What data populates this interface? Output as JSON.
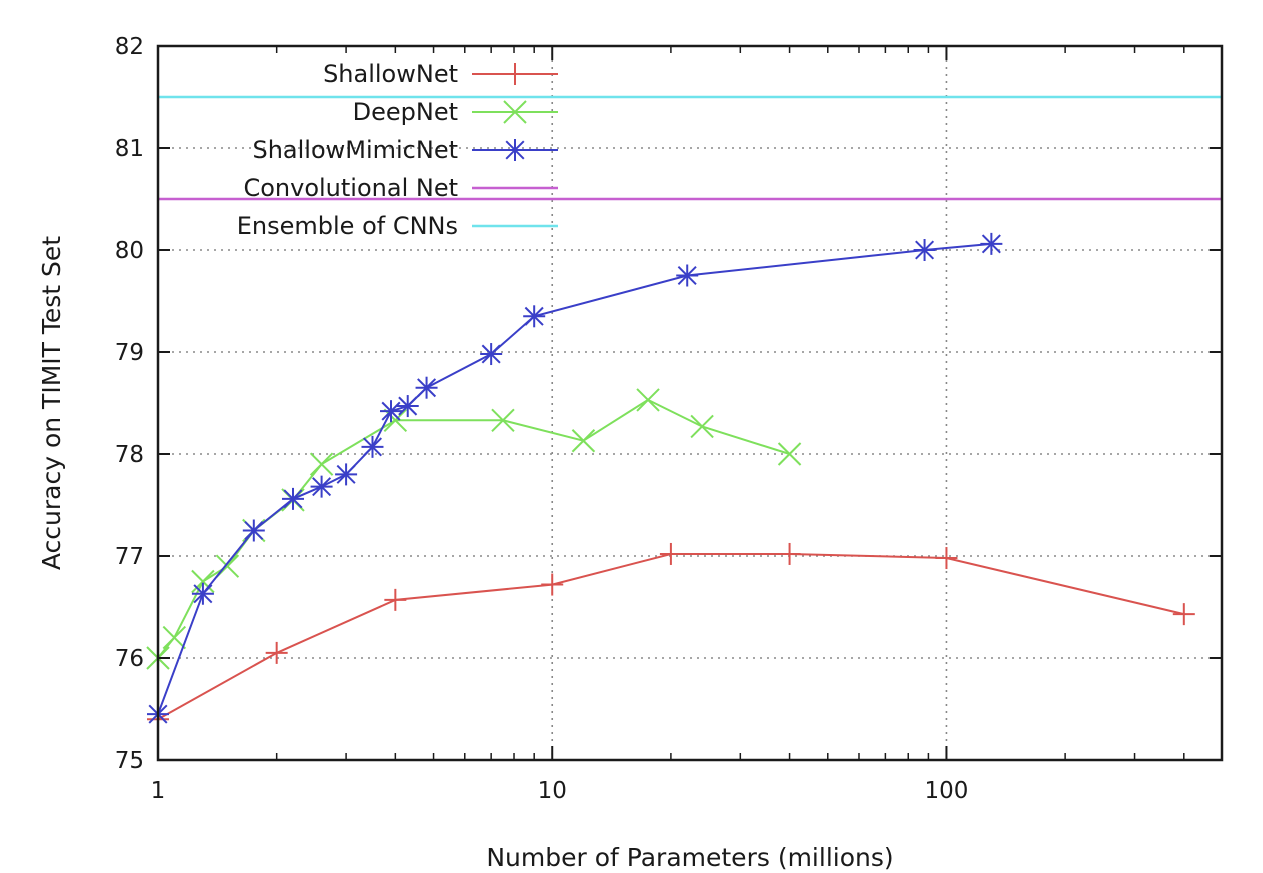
{
  "chart_data": {
    "type": "line",
    "title": "",
    "xlabel": "Number of Parameters (millions)",
    "ylabel": "Accuracy on TIMIT Test Set",
    "xscale": "log",
    "xlim": [
      1,
      500
    ],
    "ylim": [
      75,
      82
    ],
    "xticks": [
      {
        "value": 1,
        "label": "1"
      },
      {
        "value": 10,
        "label": "10"
      },
      {
        "value": 100,
        "label": "100"
      }
    ],
    "yticks": [
      {
        "value": 75,
        "label": "75"
      },
      {
        "value": 76,
        "label": "76"
      },
      {
        "value": 77,
        "label": "77"
      },
      {
        "value": 78,
        "label": "78"
      },
      {
        "value": 79,
        "label": "79"
      },
      {
        "value": 80,
        "label": "80"
      },
      {
        "value": 81,
        "label": "81"
      },
      {
        "value": 82,
        "label": "82"
      }
    ],
    "grid": true,
    "legend_position": "top-left",
    "series": [
      {
        "name": "ShallowNet",
        "color": "#d9534f",
        "marker": "plus",
        "points": [
          [
            1,
            75.4
          ],
          [
            2,
            76.05
          ],
          [
            4,
            76.57
          ],
          [
            10,
            76.72
          ],
          [
            20,
            77.02
          ],
          [
            40,
            77.02
          ],
          [
            100,
            76.98
          ],
          [
            400,
            76.43
          ]
        ]
      },
      {
        "name": "DeepNet",
        "color": "#7ee05c",
        "marker": "x",
        "points": [
          [
            1,
            76.0
          ],
          [
            1.1,
            76.2
          ],
          [
            1.3,
            76.75
          ],
          [
            1.5,
            76.9
          ],
          [
            1.75,
            77.25
          ],
          [
            2.2,
            77.55
          ],
          [
            2.6,
            77.9
          ],
          [
            4.0,
            78.33
          ],
          [
            7.5,
            78.33
          ],
          [
            12,
            78.13
          ],
          [
            17.5,
            78.53
          ],
          [
            24,
            78.27
          ],
          [
            40,
            78.0
          ]
        ]
      },
      {
        "name": "ShallowMimicNet",
        "color": "#3a3fc8",
        "marker": "star",
        "points": [
          [
            1,
            75.45
          ],
          [
            1.3,
            76.63
          ],
          [
            1.75,
            77.25
          ],
          [
            2.2,
            77.56
          ],
          [
            2.6,
            77.68
          ],
          [
            3.0,
            77.8
          ],
          [
            3.5,
            78.07
          ],
          [
            3.9,
            78.42
          ],
          [
            4.3,
            78.47
          ],
          [
            4.8,
            78.65
          ],
          [
            7.0,
            78.98
          ],
          [
            9.0,
            79.35
          ],
          [
            22,
            79.75
          ],
          [
            88,
            80.0
          ],
          [
            130,
            80.06
          ]
        ]
      },
      {
        "name": "Convolutional Net",
        "color": "#c65fd0",
        "type": "hline",
        "y": 80.5
      },
      {
        "name": "Ensemble of CNNs",
        "color": "#6fe3ec",
        "type": "hline",
        "y": 81.5
      }
    ]
  }
}
